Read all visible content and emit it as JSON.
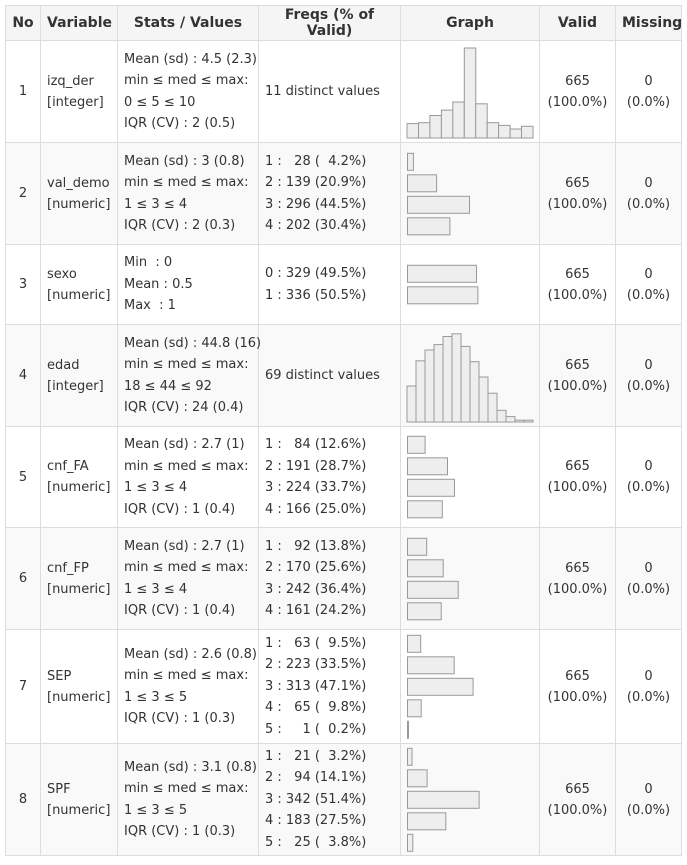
{
  "headers": [
    "No",
    "Variable",
    "Stats / Values",
    "Freqs (% of Valid)",
    "Graph",
    "Valid",
    "Missing"
  ],
  "rows": [
    {
      "no": "1",
      "name": "izq_der",
      "type": "[integer]",
      "stats": [
        "Mean (sd) : 4.5 (2.3)",
        "min ≤ med ≤ max:",
        "0 ≤ 5 ≤ 10",
        "IQR (CV) : 2 (0.5)"
      ],
      "freqs": [
        "11 distinct values"
      ],
      "graph": {
        "kind": "histogram",
        "values": [
          0.16,
          0.17,
          0.25,
          0.31,
          0.4,
          1.0,
          0.38,
          0.17,
          0.14,
          0.1,
          0.13
        ]
      },
      "valid": [
        "665",
        "(100.0%)"
      ],
      "missing": [
        "0",
        "(0.0%)"
      ]
    },
    {
      "no": "2",
      "name": "val_demo",
      "type": "[numeric]",
      "stats": [
        "Mean (sd) : 3 (0.8)",
        "min ≤ med ≤ max:",
        "1 ≤ 3 ≤ 4",
        "IQR (CV) : 2 (0.3)"
      ],
      "freqs": [
        "1 :   28 (  4.2%)",
        "2 : 139 (20.9%)",
        "3 : 296 (44.5%)",
        "4 : 202 (30.4%)"
      ],
      "graph": {
        "kind": "bars",
        "values": [
          4.2,
          20.9,
          44.5,
          30.4
        ]
      },
      "valid": [
        "665",
        "(100.0%)"
      ],
      "missing": [
        "0",
        "(0.0%)"
      ]
    },
    {
      "no": "3",
      "name": "sexo",
      "type": "[numeric]",
      "stats": [
        "Min  : 0",
        "Mean : 0.5",
        "Max  : 1"
      ],
      "freqs": [
        "0 : 329 (49.5%)",
        "1 : 336 (50.5%)"
      ],
      "graph": {
        "kind": "bars",
        "values": [
          49.5,
          50.5
        ]
      },
      "valid": [
        "665",
        "(100.0%)"
      ],
      "missing": [
        "0",
        "(0.0%)"
      ]
    },
    {
      "no": "4",
      "name": "edad",
      "type": "[integer]",
      "stats": [
        "Mean (sd) : 44.8 (16)",
        "min ≤ med ≤ max:",
        "18 ≤ 44 ≤ 92",
        "IQR (CV) : 24 (0.4)"
      ],
      "freqs": [
        "69 distinct values"
      ],
      "graph": {
        "kind": "histogram",
        "values": [
          0.4,
          0.68,
          0.8,
          0.86,
          0.95,
          0.98,
          0.84,
          0.67,
          0.5,
          0.32,
          0.13,
          0.06,
          0.02,
          0.02
        ]
      },
      "valid": [
        "665",
        "(100.0%)"
      ],
      "missing": [
        "0",
        "(0.0%)"
      ]
    },
    {
      "no": "5",
      "name": "cnf_FA",
      "type": "[numeric]",
      "stats": [
        "Mean (sd) : 2.7 (1)",
        "min ≤ med ≤ max:",
        "1 ≤ 3 ≤ 4",
        "IQR (CV) : 1 (0.4)"
      ],
      "freqs": [
        "1 :   84 (12.6%)",
        "2 : 191 (28.7%)",
        "3 : 224 (33.7%)",
        "4 : 166 (25.0%)"
      ],
      "graph": {
        "kind": "bars",
        "values": [
          12.6,
          28.7,
          33.7,
          25.0
        ]
      },
      "valid": [
        "665",
        "(100.0%)"
      ],
      "missing": [
        "0",
        "(0.0%)"
      ]
    },
    {
      "no": "6",
      "name": "cnf_FP",
      "type": "[numeric]",
      "stats": [
        "Mean (sd) : 2.7 (1)",
        "min ≤ med ≤ max:",
        "1 ≤ 3 ≤ 4",
        "IQR (CV) : 1 (0.4)"
      ],
      "freqs": [
        "1 :   92 (13.8%)",
        "2 : 170 (25.6%)",
        "3 : 242 (36.4%)",
        "4 : 161 (24.2%)"
      ],
      "graph": {
        "kind": "bars",
        "values": [
          13.8,
          25.6,
          36.4,
          24.2
        ]
      },
      "valid": [
        "665",
        "(100.0%)"
      ],
      "missing": [
        "0",
        "(0.0%)"
      ]
    },
    {
      "no": "7",
      "name": "SEP",
      "type": "[numeric]",
      "stats": [
        "Mean (sd) : 2.6 (0.8)",
        "min ≤ med ≤ max:",
        "1 ≤ 3 ≤ 5",
        "IQR (CV) : 1 (0.3)"
      ],
      "freqs": [
        "1 :   63 (  9.5%)",
        "2 : 223 (33.5%)",
        "3 : 313 (47.1%)",
        "4 :   65 (  9.8%)",
        "5 :     1 (  0.2%)"
      ],
      "graph": {
        "kind": "bars",
        "values": [
          9.5,
          33.5,
          47.1,
          9.8,
          0.2
        ]
      },
      "valid": [
        "665",
        "(100.0%)"
      ],
      "missing": [
        "0",
        "(0.0%)"
      ]
    },
    {
      "no": "8",
      "name": "SPF",
      "type": "[numeric]",
      "stats": [
        "Mean (sd) : 3.1 (0.8)",
        "min ≤ med ≤ max:",
        "1 ≤ 3 ≤ 5",
        "IQR (CV) : 1 (0.3)"
      ],
      "freqs": [
        "1 :   21 (  3.2%)",
        "2 :   94 (14.1%)",
        "3 : 342 (51.4%)",
        "4 : 183 (27.5%)",
        "5 :   25 (  3.8%)"
      ],
      "graph": {
        "kind": "bars",
        "values": [
          3.2,
          14.1,
          51.4,
          27.5,
          3.8
        ]
      },
      "valid": [
        "665",
        "(100.0%)"
      ],
      "missing": [
        "0",
        "(0.0%)"
      ]
    }
  ],
  "colors": {
    "bar_fill": "#eeeeee",
    "bar_stroke": "#999999",
    "header_bg": "#f5f5f5",
    "border": "#dddddd"
  }
}
